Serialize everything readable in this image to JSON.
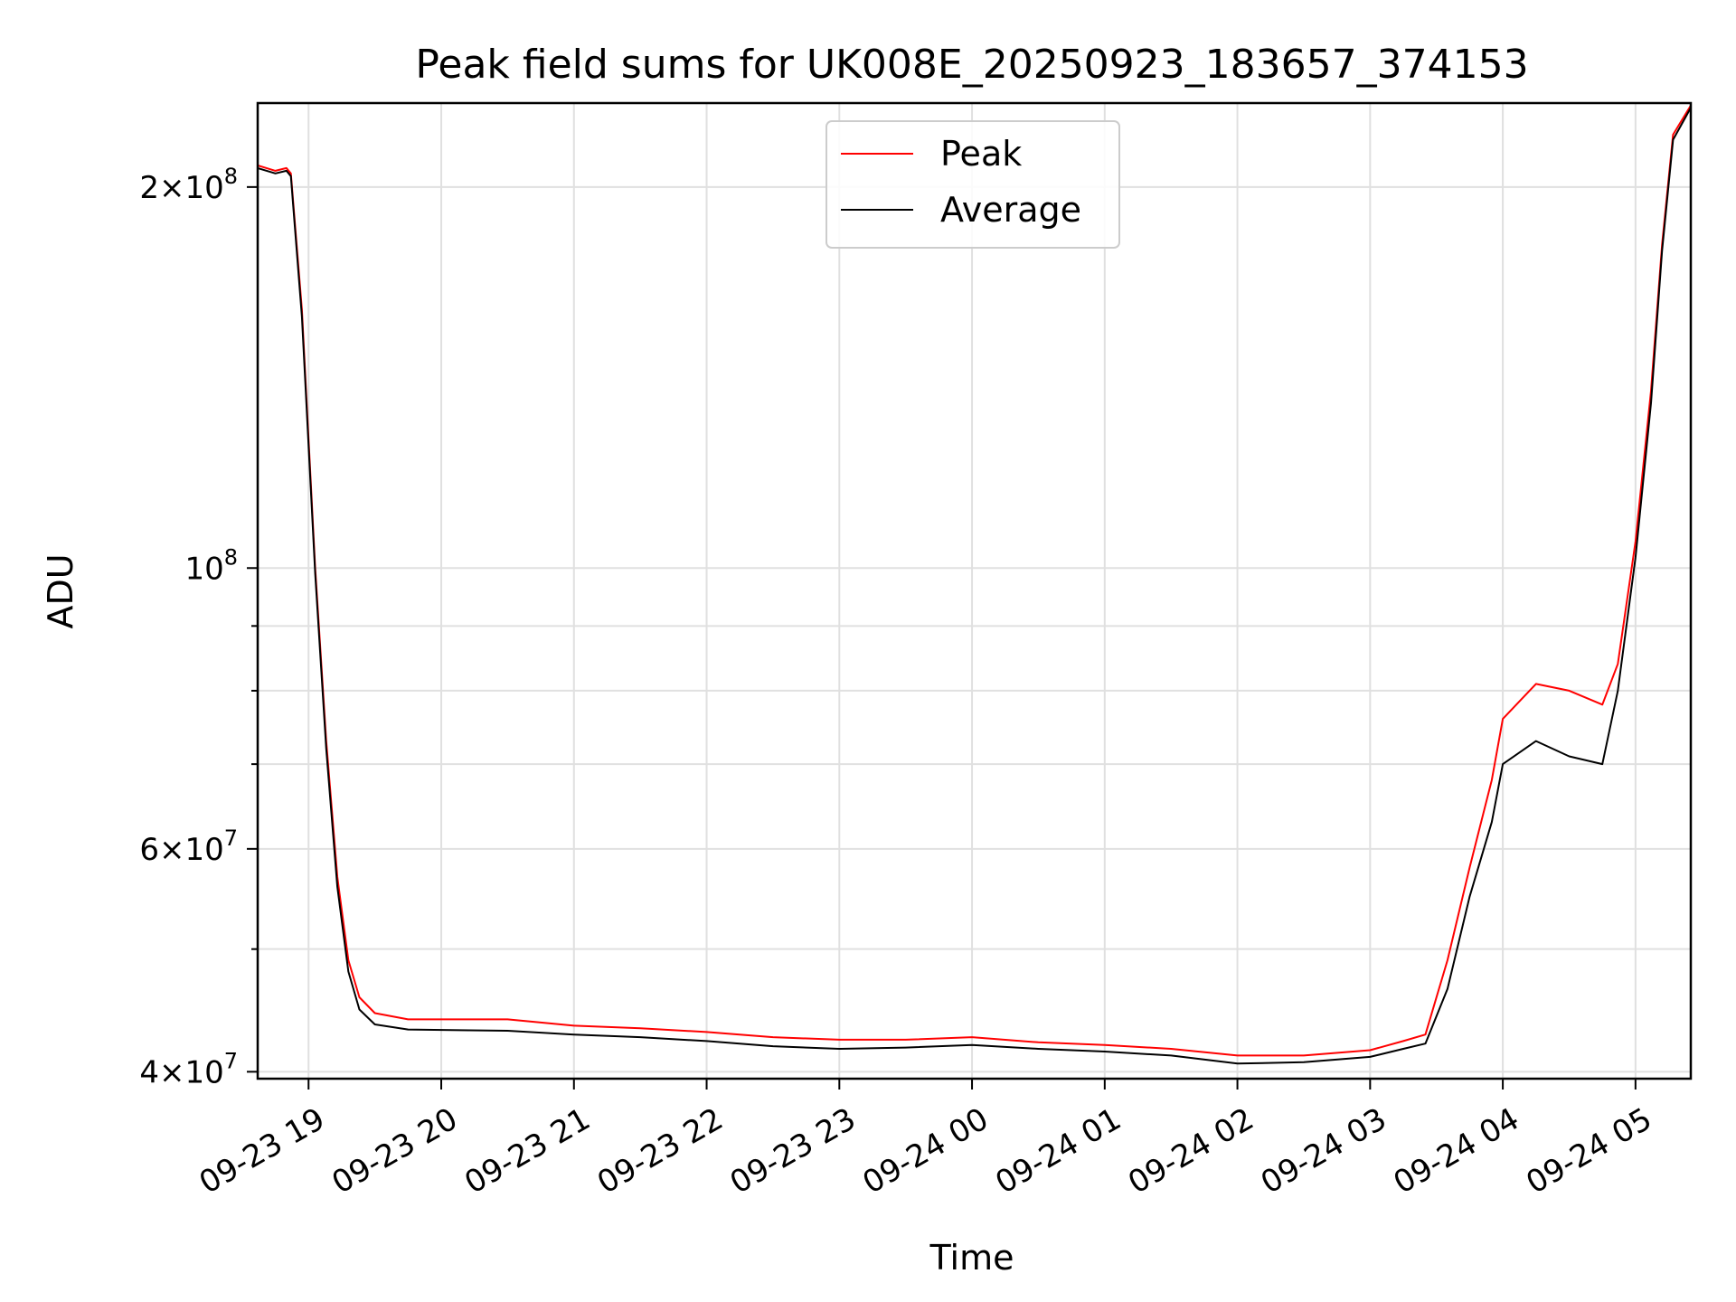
{
  "chart_data": {
    "type": "line",
    "title": "Peak field sums for UK008E_20250923_183657_374153",
    "xlabel": "Time",
    "ylabel": "ADU",
    "yscale": "log",
    "ylim": [
      39500000,
      233000000
    ],
    "xlim": [
      "2025-09-23 18:37",
      "2025-09-24 05:25"
    ],
    "grid": true,
    "legend_position": "top-center",
    "x_ticks": [
      {
        "t": "2025-09-23 19:00",
        "label": "09-23 19"
      },
      {
        "t": "2025-09-23 20:00",
        "label": "09-23 20"
      },
      {
        "t": "2025-09-23 21:00",
        "label": "09-23 21"
      },
      {
        "t": "2025-09-23 22:00",
        "label": "09-23 22"
      },
      {
        "t": "2025-09-23 23:00",
        "label": "09-23 23"
      },
      {
        "t": "2025-09-24 00:00",
        "label": "09-24 00"
      },
      {
        "t": "2025-09-24 01:00",
        "label": "09-24 01"
      },
      {
        "t": "2025-09-24 02:00",
        "label": "09-24 02"
      },
      {
        "t": "2025-09-24 03:00",
        "label": "09-24 03"
      },
      {
        "t": "2025-09-24 04:00",
        "label": "09-24 04"
      },
      {
        "t": "2025-09-24 05:00",
        "label": "09-24 05"
      }
    ],
    "y_major_ticks": [
      {
        "value": 40000000,
        "mant": "4",
        "exp": "7"
      },
      {
        "value": 60000000,
        "mant": "6",
        "exp": "7"
      },
      {
        "value": 100000000,
        "mant": "",
        "exp": "8"
      },
      {
        "value": 200000000,
        "mant": "2",
        "exp": "8"
      }
    ],
    "y_minor_ticks": [
      50000000,
      70000000,
      80000000,
      90000000,
      300000000
    ],
    "series": [
      {
        "name": "Peak",
        "color": "#ff0000",
        "points": [
          [
            "2025-09-23 18:37",
            208000000
          ],
          [
            "2025-09-23 18:45",
            206000000
          ],
          [
            "2025-09-23 18:50",
            207000000
          ],
          [
            "2025-09-23 18:52",
            205000000
          ],
          [
            "2025-09-23 18:57",
            160000000
          ],
          [
            "2025-09-23 19:03",
            100000000
          ],
          [
            "2025-09-23 19:08",
            73000000
          ],
          [
            "2025-09-23 19:13",
            57000000
          ],
          [
            "2025-09-23 19:18",
            49000000
          ],
          [
            "2025-09-23 19:23",
            45800000
          ],
          [
            "2025-09-23 19:30",
            44500000
          ],
          [
            "2025-09-23 19:45",
            44000000
          ],
          [
            "2025-09-23 20:30",
            44000000
          ],
          [
            "2025-09-23 21:00",
            43500000
          ],
          [
            "2025-09-23 21:30",
            43300000
          ],
          [
            "2025-09-23 22:00",
            43000000
          ],
          [
            "2025-09-23 22:30",
            42600000
          ],
          [
            "2025-09-23 23:00",
            42400000
          ],
          [
            "2025-09-23 23:30",
            42400000
          ],
          [
            "2025-09-24 00:00",
            42600000
          ],
          [
            "2025-09-24 00:30",
            42200000
          ],
          [
            "2025-09-24 01:00",
            42000000
          ],
          [
            "2025-09-24 01:30",
            41700000
          ],
          [
            "2025-09-24 02:00",
            41200000
          ],
          [
            "2025-09-24 02:30",
            41200000
          ],
          [
            "2025-09-24 03:00",
            41600000
          ],
          [
            "2025-09-24 03:15",
            42300000
          ],
          [
            "2025-09-24 03:25",
            42800000
          ],
          [
            "2025-09-24 03:35",
            49000000
          ],
          [
            "2025-09-24 03:45",
            58000000
          ],
          [
            "2025-09-24 03:55",
            68000000
          ],
          [
            "2025-09-24 04:00",
            76000000
          ],
          [
            "2025-09-24 04:15",
            81000000
          ],
          [
            "2025-09-24 04:30",
            80000000
          ],
          [
            "2025-09-24 04:45",
            78000000
          ],
          [
            "2025-09-24 04:52",
            84000000
          ],
          [
            "2025-09-24 05:00",
            105000000
          ],
          [
            "2025-09-24 05:07",
            138000000
          ],
          [
            "2025-09-24 05:12",
            180000000
          ],
          [
            "2025-09-24 05:17",
            220000000
          ],
          [
            "2025-09-24 05:25",
            232000000
          ]
        ]
      },
      {
        "name": "Average",
        "color": "#000000",
        "points": [
          [
            "2025-09-23 18:37",
            207000000
          ],
          [
            "2025-09-23 18:45",
            205000000
          ],
          [
            "2025-09-23 18:50",
            206000000
          ],
          [
            "2025-09-23 18:52",
            204000000
          ],
          [
            "2025-09-23 18:57",
            158000000
          ],
          [
            "2025-09-23 19:03",
            99000000
          ],
          [
            "2025-09-23 19:08",
            72000000
          ],
          [
            "2025-09-23 19:13",
            56000000
          ],
          [
            "2025-09-23 19:18",
            48000000
          ],
          [
            "2025-09-23 19:23",
            44800000
          ],
          [
            "2025-09-23 19:30",
            43600000
          ],
          [
            "2025-09-23 19:45",
            43200000
          ],
          [
            "2025-09-23 20:30",
            43100000
          ],
          [
            "2025-09-23 21:00",
            42800000
          ],
          [
            "2025-09-23 21:30",
            42600000
          ],
          [
            "2025-09-23 22:00",
            42300000
          ],
          [
            "2025-09-23 22:30",
            41900000
          ],
          [
            "2025-09-23 23:00",
            41700000
          ],
          [
            "2025-09-23 23:30",
            41800000
          ],
          [
            "2025-09-24 00:00",
            42000000
          ],
          [
            "2025-09-24 00:30",
            41700000
          ],
          [
            "2025-09-24 01:00",
            41500000
          ],
          [
            "2025-09-24 01:30",
            41200000
          ],
          [
            "2025-09-24 02:00",
            40600000
          ],
          [
            "2025-09-24 02:30",
            40700000
          ],
          [
            "2025-09-24 03:00",
            41100000
          ],
          [
            "2025-09-24 03:15",
            41700000
          ],
          [
            "2025-09-24 03:25",
            42100000
          ],
          [
            "2025-09-24 03:35",
            46500000
          ],
          [
            "2025-09-24 03:45",
            55000000
          ],
          [
            "2025-09-24 03:55",
            63000000
          ],
          [
            "2025-09-24 04:00",
            70000000
          ],
          [
            "2025-09-24 04:15",
            73000000
          ],
          [
            "2025-09-24 04:30",
            71000000
          ],
          [
            "2025-09-24 04:45",
            70000000
          ],
          [
            "2025-09-24 04:52",
            80000000
          ],
          [
            "2025-09-24 05:00",
            102000000
          ],
          [
            "2025-09-24 05:07",
            135000000
          ],
          [
            "2025-09-24 05:12",
            178000000
          ],
          [
            "2025-09-24 05:17",
            218000000
          ],
          [
            "2025-09-24 05:25",
            231000000
          ]
        ]
      }
    ]
  }
}
